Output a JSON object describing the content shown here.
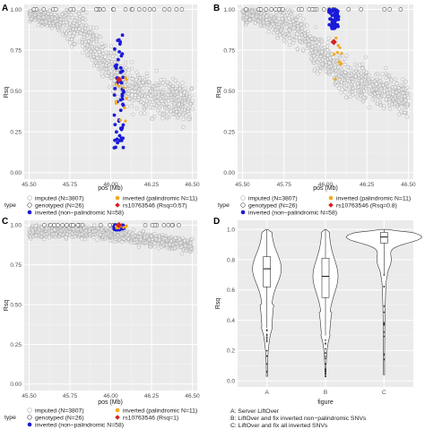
{
  "panels": [
    {
      "label": "A",
      "type": "scatter",
      "xlabel": "pos (Mb)",
      "ylabel": "Rsq",
      "xlim": [
        45.47,
        46.53
      ],
      "ylim": [
        -0.04,
        1.03
      ],
      "xticks": [
        "45.50",
        "45.75",
        "46.00",
        "46.25",
        "46.50"
      ],
      "yticks": [
        "0.00",
        "0.25",
        "0.50",
        "0.75",
        "1.00"
      ],
      "legend_title": "type",
      "legend": [
        "imputed (N=3807)",
        "genotyped (N=26)",
        "inverted (non−palindromic N=58)",
        "inverted (palindromic N=11)",
        "rs10763546 (Rsq=0.57)"
      ],
      "highlight": {
        "x": 46.05,
        "y": 0.57
      }
    },
    {
      "label": "B",
      "type": "scatter",
      "xlabel": "pos (Mb)",
      "ylabel": "Rsq",
      "xlim": [
        45.47,
        46.53
      ],
      "ylim": [
        -0.04,
        1.03
      ],
      "xticks": [
        "45.50",
        "45.75",
        "46.00",
        "46.25",
        "46.50"
      ],
      "yticks": [
        "0.00",
        "0.25",
        "0.50",
        "0.75",
        "1.00"
      ],
      "legend_title": "type",
      "legend": [
        "imputed (N=3807)",
        "genotyped (N=26)",
        "inverted (non−palindromic N=58)",
        "inverted (palindromic N=11)",
        "rs10763546 (Rsq=0.8)"
      ],
      "highlight": {
        "x": 46.05,
        "y": 0.8
      }
    },
    {
      "label": "C",
      "type": "scatter",
      "xlabel": "pos (Mb)",
      "ylabel": "Rsq",
      "xlim": [
        45.47,
        46.53
      ],
      "ylim": [
        -0.04,
        1.03
      ],
      "xticks": [
        "45.50",
        "45.75",
        "46.00",
        "46.25",
        "46.50"
      ],
      "yticks": [
        "0.00",
        "0.25",
        "0.50",
        "0.75",
        "1.00"
      ],
      "legend_title": "type",
      "legend": [
        "imputed (N=3807)",
        "genotyped (N=26)",
        "inverted (non−palindromic N=58)",
        "inverted (palindromic N=11)",
        "rs10763546 (Rsq=1)"
      ],
      "highlight": {
        "x": 46.05,
        "y": 1.0
      }
    },
    {
      "label": "D",
      "type": "violin",
      "xlabel": "figure",
      "ylabel": "Rsq",
      "ylim": [
        -0.04,
        1.06
      ],
      "yticks": [
        "0.0",
        "0.2",
        "0.4",
        "0.6",
        "0.8",
        "1.0"
      ],
      "categories": [
        "A",
        "B",
        "C"
      ],
      "medians": [
        0.74,
        0.69,
        0.95
      ],
      "q1": [
        0.62,
        0.55,
        0.91
      ],
      "q3": [
        0.82,
        0.81,
        0.98
      ],
      "caption": [
        "A: Server LiftOver",
        "B: LiftOver and fix inverted non−palindromic SNVs",
        "C: LiftOver and fix all inverted SNVs"
      ]
    }
  ],
  "chart_data": [
    {
      "type": "scatter",
      "panel": "A",
      "title": "",
      "xlabel": "pos (Mb)",
      "ylabel": "Rsq",
      "xlim": [
        45.47,
        46.53
      ],
      "ylim": [
        -0.04,
        1.03
      ],
      "series": [
        {
          "name": "imputed (N=3807)",
          "summary": "dense band from Rsq ~1.0 at 45.5 Mb decreasing to ~0.5 at 46.1 Mb, then ~0.3-0.6 up to 46.5 Mb"
        },
        {
          "name": "genotyped (N=26)",
          "summary": "Rsq = 1.0 along top"
        },
        {
          "name": "inverted (non−palindromic N=58)",
          "summary": "46.02-46.08 Mb, Rsq 0.15-0.85"
        },
        {
          "name": "inverted (palindromic N=11)",
          "summary": "46.03-46.10 Mb, Rsq 0.3-0.6"
        },
        {
          "name": "rs10763546 (Rsq=0.57)",
          "x": [
            46.05
          ],
          "y": [
            0.57
          ]
        }
      ]
    },
    {
      "type": "scatter",
      "panel": "B",
      "title": "",
      "xlabel": "pos (Mb)",
      "ylabel": "Rsq",
      "xlim": [
        45.47,
        46.53
      ],
      "ylim": [
        -0.04,
        1.03
      ],
      "series": [
        {
          "name": "imputed (N=3807)",
          "summary": "dense band decreasing from ~1.0 to ~0.4 across 45.5-46.5 Mb"
        },
        {
          "name": "genotyped (N=26)",
          "summary": "Rsq = 1.0 along top"
        },
        {
          "name": "inverted (non−palindromic N=58)",
          "summary": "46.02-46.08 Mb, Rsq 0.88-1.0"
        },
        {
          "name": "inverted (palindromic N=11)",
          "summary": "46.03-46.10 Mb, Rsq 0.55-0.85"
        },
        {
          "name": "rs10763546 (Rsq=0.8)",
          "x": [
            46.05
          ],
          "y": [
            0.8
          ]
        }
      ]
    },
    {
      "type": "scatter",
      "panel": "C",
      "title": "",
      "xlabel": "pos (Mb)",
      "ylabel": "Rsq",
      "xlim": [
        45.47,
        46.53
      ],
      "ylim": [
        -0.04,
        1.03
      ],
      "series": [
        {
          "name": "imputed (N=3807)",
          "summary": "dense band near Rsq 0.85-1.0 across 45.5-46.5 Mb"
        },
        {
          "name": "genotyped (N=26)",
          "summary": "Rsq = 1.0 along top"
        },
        {
          "name": "inverted (non−palindromic N=58)",
          "summary": "46.02-46.08 Mb, Rsq ~1.0"
        },
        {
          "name": "inverted (palindromic N=11)",
          "summary": "46.03-46.10 Mb, Rsq ~1.0"
        },
        {
          "name": "rs10763546 (Rsq=1)",
          "x": [
            46.05
          ],
          "y": [
            1.0
          ]
        }
      ]
    },
    {
      "type": "violin",
      "panel": "D",
      "title": "",
      "xlabel": "figure",
      "ylabel": "Rsq",
      "categories": [
        "A",
        "B",
        "C"
      ],
      "ylim": [
        -0.04,
        1.06
      ],
      "series": [
        {
          "name": "median",
          "values": [
            0.74,
            0.69,
            0.95
          ]
        },
        {
          "name": "q1",
          "values": [
            0.62,
            0.55,
            0.91
          ]
        },
        {
          "name": "q3",
          "values": [
            0.82,
            0.81,
            0.98
          ]
        }
      ]
    }
  ]
}
